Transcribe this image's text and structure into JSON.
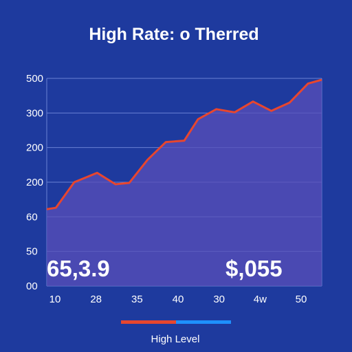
{
  "chart_data": {
    "type": "area",
    "title": "High Rate: o Therred",
    "y_tick_labels": [
      "500",
      "300",
      "200",
      "200",
      "60",
      "50",
      "00"
    ],
    "x_tick_labels": [
      "10",
      "28",
      "35",
      "40",
      "30",
      "4w",
      "50"
    ],
    "ylim": [
      0,
      6
    ],
    "series": [
      {
        "name": "High Level",
        "x": [
          0,
          0.2,
          0.6,
          1.1,
          1.5,
          1.8,
          2.2,
          2.6,
          3.0,
          3.3,
          3.7,
          4.1,
          4.5,
          4.9,
          5.3,
          5.7,
          6.0
        ],
        "y": [
          2.22,
          2.26,
          3.0,
          3.27,
          2.94,
          2.98,
          3.65,
          4.16,
          4.2,
          4.82,
          5.11,
          5.02,
          5.33,
          5.06,
          5.3,
          5.85,
          5.96
        ]
      }
    ],
    "annotations": [
      "65,3.9",
      "$,055"
    ],
    "grid": true,
    "legend": "bottom-center",
    "colors": {
      "background": "#1e3a9e",
      "line": "#e8462e",
      "area": "#5a4fb8",
      "grid": "#6a82d4",
      "legend_secondary": "#1e90ff"
    }
  }
}
